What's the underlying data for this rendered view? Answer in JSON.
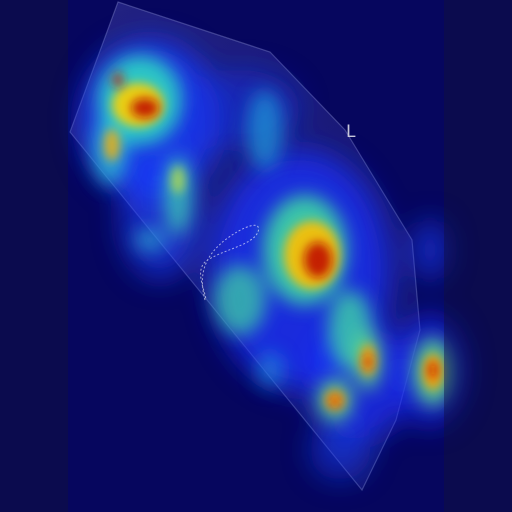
{
  "orientation_label": "L",
  "colors": {
    "background": "#0b0b50",
    "colormap": [
      "#00007f",
      "#0000ff",
      "#00a0ff",
      "#40ffbf",
      "#ffff00",
      "#ff8000",
      "#b00000"
    ]
  },
  "overlay": {
    "type": "attention-heatmap",
    "colormap": "jet"
  }
}
